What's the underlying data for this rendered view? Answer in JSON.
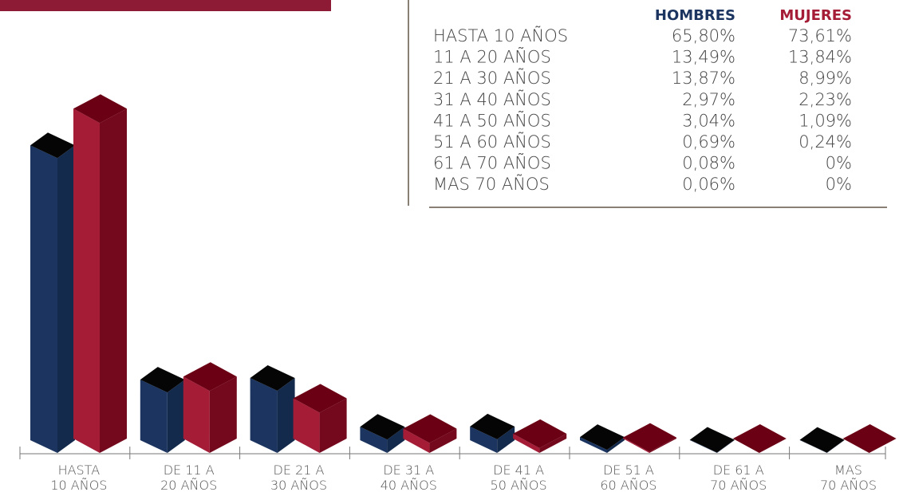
{
  "chart_data": {
    "type": "bar3d",
    "categories": [
      "HASTA\n10 AÑOS",
      "DE 11 A\n20 AÑOS",
      "DE 21 A\n30 AÑOS",
      "DE 31 A\n40 AÑOS",
      "DE 41 A\n50 AÑOS",
      "DE 51 A\n60 AÑOS",
      "DE 61 A\n70 AÑOS",
      "MAS\n70 AÑOS"
    ],
    "series": [
      {
        "name": "HOMBRES",
        "color": "#1b3560",
        "values": [
          65.8,
          13.49,
          13.87,
          2.97,
          3.04,
          0.69,
          0.08,
          0.06
        ]
      },
      {
        "name": "MUJERES",
        "color": "#a51c36",
        "values": [
          73.61,
          13.84,
          8.99,
          2.23,
          1.09,
          0.24,
          0,
          0
        ]
      }
    ]
  },
  "table": {
    "rows": [
      [
        "HASTA 10 AÑOS",
        "65,80%",
        "73,61%"
      ],
      [
        "11 A 20 AÑOS",
        "13,49%",
        "13,84%"
      ],
      [
        "21 A 30 AÑOS",
        "13,87%",
        "8,99%"
      ],
      [
        "31 A 40 AÑOS",
        "2,97%",
        "2,23%"
      ],
      [
        "41 A 50 AÑOS",
        "3,04%",
        "1,09%"
      ],
      [
        "51 A 60 AÑOS",
        "0,69%",
        "0,24%"
      ],
      [
        "61 A 70 AÑOS",
        "0,08%",
        "0%"
      ],
      [
        "MAS 70 AÑOS",
        "0,06%",
        "0%"
      ]
    ]
  }
}
